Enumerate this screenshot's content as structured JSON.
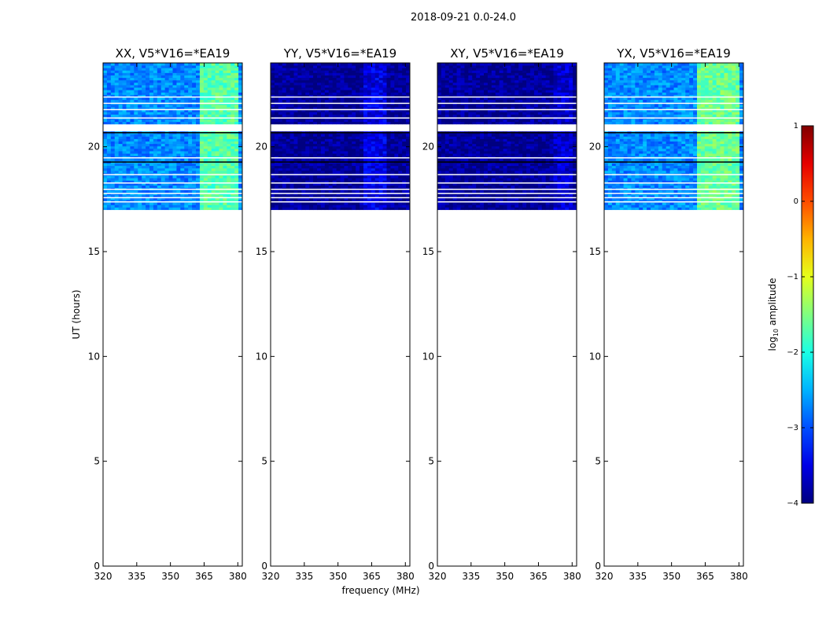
{
  "chart_data": {
    "type": "heatmap",
    "suptitle": "2018-09-21 0.0-24.0",
    "xlabel": "frequency (MHz)",
    "ylabel": "UT (hours)",
    "xlim": [
      320,
      382
    ],
    "ylim": [
      0,
      24
    ],
    "xticks": [
      320,
      335,
      350,
      365,
      380
    ],
    "yticks": [
      0,
      5,
      10,
      15,
      20
    ],
    "data_time_range": [
      17.0,
      24.0
    ],
    "gap_time_range": [
      20.7,
      21.1
    ],
    "panels": [
      {
        "title": "XX, V5*V16=*EA19",
        "base_level": -2.7,
        "bright_band": [
          362,
          380
        ],
        "bright_level": -1.7
      },
      {
        "title": "YY, V5*V16=*EA19",
        "base_level": -3.9,
        "bright_band": [
          360,
          370
        ],
        "bright_level": -3.5
      },
      {
        "title": "XY, V5*V16=*EA19",
        "base_level": -3.9,
        "bright_band": [
          370,
          380
        ],
        "bright_level": -3.6
      },
      {
        "title": "YX, V5*V16=*EA19",
        "base_level": -2.7,
        "bright_band": [
          360,
          380
        ],
        "bright_level": -1.6
      }
    ],
    "colorbar": {
      "label": "log₁₀ amplitude",
      "label_main": "log",
      "label_sub": "10",
      "label_tail": " amplitude",
      "min": -4,
      "max": 1,
      "ticks": [
        -4,
        -3,
        -2,
        -1,
        0,
        1
      ],
      "tick_labels": [
        "−4",
        "−3",
        "−2",
        "−1",
        "0",
        "1"
      ],
      "colormap": "jet"
    }
  }
}
